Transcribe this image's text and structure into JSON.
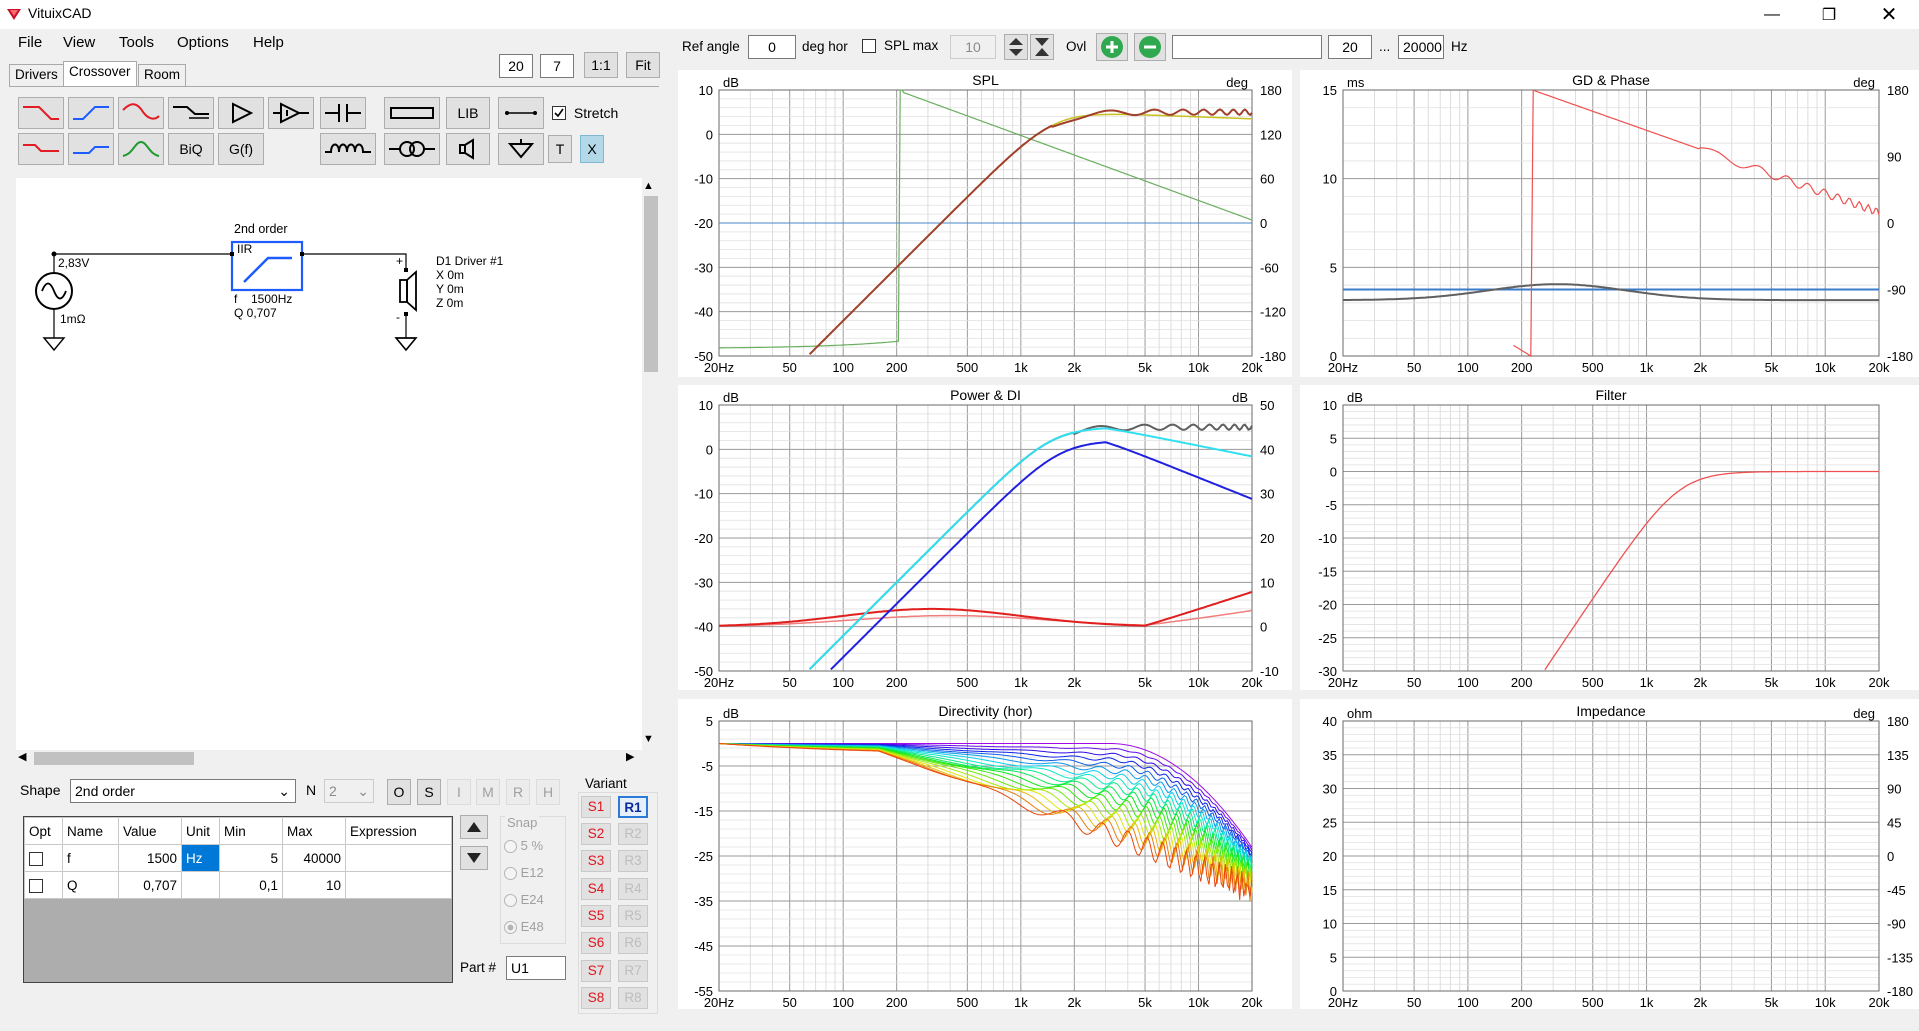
{
  "app": {
    "title": "VituixCAD",
    "colors": {
      "accent": "#0078d7",
      "red": "#e31b23",
      "blue": "#1e5cff"
    }
  },
  "menu": [
    "File",
    "View",
    "Tools",
    "Options",
    "Help"
  ],
  "tabs": [
    "Drivers",
    "Crossover",
    "Room"
  ],
  "zoom": {
    "box1": "20",
    "box2": "7",
    "btn_ratio": "1:1",
    "btn_fit": "Fit"
  },
  "toolbar": {
    "lib": "LIB",
    "biq": "BiQ",
    "gf": "G(f)",
    "t": "T",
    "x": "X",
    "stretch_label": "Stretch",
    "stretch_checked": true
  },
  "schematic": {
    "source_voltage": "2,83V",
    "source_resistance": "1mΩ",
    "block_title": "2nd order",
    "block_type": "IIR",
    "block_f_label": "f",
    "block_f_value": "1500Hz",
    "block_q": "Q  0,707",
    "driver_name": "D1 Driver #1",
    "driver_x": "X 0m",
    "driver_y": "Y 0m",
    "driver_z": "Z 0m",
    "plus": "+",
    "minus": "-"
  },
  "shape": {
    "label": "Shape",
    "value": "2nd order",
    "n_label": "N",
    "n_value": "2",
    "buttons": [
      "O",
      "S",
      "I",
      "M",
      "R",
      "H"
    ]
  },
  "params": {
    "headers": [
      "Opt",
      "Name",
      "Value",
      "Unit",
      "Min",
      "Max",
      "Expression"
    ],
    "rows": [
      {
        "name": "f",
        "value": "1500",
        "unit": "Hz",
        "min": "5",
        "max": "40000",
        "expr": ""
      },
      {
        "name": "Q",
        "value": "0,707",
        "unit": "",
        "min": "0,1",
        "max": "10",
        "expr": ""
      }
    ]
  },
  "snap": {
    "label": "Snap",
    "options": [
      "5 %",
      "E12",
      "E24",
      "E48"
    ],
    "selected": "E48"
  },
  "part": {
    "label": "Part #",
    "value": "U1"
  },
  "variant": {
    "label": "Variant",
    "s": [
      "S1",
      "S2",
      "S3",
      "S4",
      "S5",
      "S6",
      "S7",
      "S8"
    ],
    "r": [
      "R1",
      "R2",
      "R3",
      "R4",
      "R5",
      "R6",
      "R7",
      "R8"
    ]
  },
  "topbar": {
    "ref_angle_label": "Ref angle",
    "ref_angle": "0",
    "deg_hor": "deg hor",
    "spl_max_label": "SPL max",
    "spl_max": "10",
    "ovl": "Ovl",
    "freq_from": "20",
    "ellipsis": "...",
    "freq_to": "20000",
    "hz": "Hz"
  },
  "freq_ticks": [
    "20Hz",
    "50",
    "100",
    "200",
    "500",
    "1k",
    "2k",
    "5k",
    "10k",
    "20k"
  ],
  "plots": {
    "spl": {
      "title": "SPL",
      "left_unit": "dB",
      "right_unit": "deg",
      "left_ticks": [
        "10",
        "0",
        "-10",
        "-20",
        "-30",
        "-40",
        "-50"
      ],
      "right_ticks": [
        "180",
        "120",
        "60",
        "0",
        "-60",
        "-120",
        "-180"
      ]
    },
    "gd": {
      "title": "GD & Phase",
      "left_unit": "ms",
      "right_unit": "deg",
      "left_ticks": [
        "15",
        "10",
        "5",
        "0"
      ],
      "right_ticks": [
        "180",
        "90",
        "0",
        "-90",
        "-180"
      ]
    },
    "power": {
      "title": "Power & DI",
      "left_unit": "dB",
      "right_unit": "dB",
      "left_ticks": [
        "10",
        "0",
        "-10",
        "-20",
        "-30",
        "-40",
        "-50"
      ],
      "right_ticks": [
        "50",
        "40",
        "30",
        "20",
        "10",
        "0",
        "-10"
      ]
    },
    "filter": {
      "title": "Filter",
      "left_unit": "dB",
      "left_ticks": [
        "10",
        "5",
        "0",
        "-5",
        "-10",
        "-15",
        "-20",
        "-25",
        "-30"
      ]
    },
    "directivity": {
      "title": "Directivity (hor)",
      "left_unit": "dB",
      "left_ticks": [
        "5",
        "-5",
        "-15",
        "-25",
        "-35",
        "-45",
        "-55"
      ]
    },
    "impedance": {
      "title": "Impedance",
      "left_unit": "ohm",
      "right_unit": "deg",
      "left_ticks": [
        "40",
        "35",
        "30",
        "25",
        "20",
        "15",
        "10",
        "5",
        "0"
      ],
      "right_ticks": [
        "180",
        "135",
        "90",
        "45",
        "0",
        "-45",
        "-90",
        "-135",
        "-180"
      ]
    }
  }
}
